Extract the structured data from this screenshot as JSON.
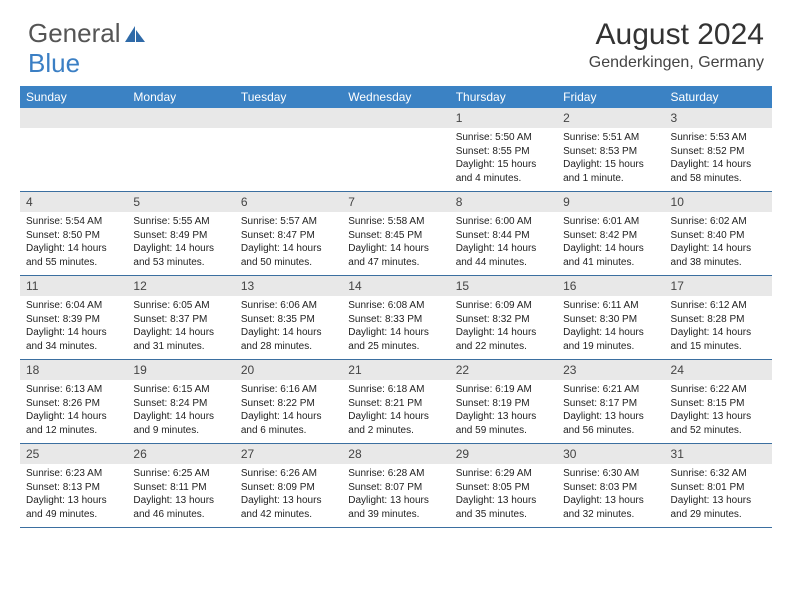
{
  "logo": {
    "text1": "General",
    "text2": "Blue"
  },
  "title": "August 2024",
  "location": "Genderkingen, Germany",
  "colors": {
    "header_bg": "#3b82c4",
    "header_text": "#ffffff",
    "daynum_bg": "#e8e8e8",
    "border": "#3b6fa0",
    "logo_gray": "#555555",
    "logo_blue": "#3b7fc4"
  },
  "day_names": [
    "Sunday",
    "Monday",
    "Tuesday",
    "Wednesday",
    "Thursday",
    "Friday",
    "Saturday"
  ],
  "weeks": [
    [
      {
        "n": "",
        "lines": [
          "",
          "",
          "",
          ""
        ]
      },
      {
        "n": "",
        "lines": [
          "",
          "",
          "",
          ""
        ]
      },
      {
        "n": "",
        "lines": [
          "",
          "",
          "",
          ""
        ]
      },
      {
        "n": "",
        "lines": [
          "",
          "",
          "",
          ""
        ]
      },
      {
        "n": "1",
        "lines": [
          "Sunrise: 5:50 AM",
          "Sunset: 8:55 PM",
          "Daylight: 15 hours",
          "and 4 minutes."
        ]
      },
      {
        "n": "2",
        "lines": [
          "Sunrise: 5:51 AM",
          "Sunset: 8:53 PM",
          "Daylight: 15 hours",
          "and 1 minute."
        ]
      },
      {
        "n": "3",
        "lines": [
          "Sunrise: 5:53 AM",
          "Sunset: 8:52 PM",
          "Daylight: 14 hours",
          "and 58 minutes."
        ]
      }
    ],
    [
      {
        "n": "4",
        "lines": [
          "Sunrise: 5:54 AM",
          "Sunset: 8:50 PM",
          "Daylight: 14 hours",
          "and 55 minutes."
        ]
      },
      {
        "n": "5",
        "lines": [
          "Sunrise: 5:55 AM",
          "Sunset: 8:49 PM",
          "Daylight: 14 hours",
          "and 53 minutes."
        ]
      },
      {
        "n": "6",
        "lines": [
          "Sunrise: 5:57 AM",
          "Sunset: 8:47 PM",
          "Daylight: 14 hours",
          "and 50 minutes."
        ]
      },
      {
        "n": "7",
        "lines": [
          "Sunrise: 5:58 AM",
          "Sunset: 8:45 PM",
          "Daylight: 14 hours",
          "and 47 minutes."
        ]
      },
      {
        "n": "8",
        "lines": [
          "Sunrise: 6:00 AM",
          "Sunset: 8:44 PM",
          "Daylight: 14 hours",
          "and 44 minutes."
        ]
      },
      {
        "n": "9",
        "lines": [
          "Sunrise: 6:01 AM",
          "Sunset: 8:42 PM",
          "Daylight: 14 hours",
          "and 41 minutes."
        ]
      },
      {
        "n": "10",
        "lines": [
          "Sunrise: 6:02 AM",
          "Sunset: 8:40 PM",
          "Daylight: 14 hours",
          "and 38 minutes."
        ]
      }
    ],
    [
      {
        "n": "11",
        "lines": [
          "Sunrise: 6:04 AM",
          "Sunset: 8:39 PM",
          "Daylight: 14 hours",
          "and 34 minutes."
        ]
      },
      {
        "n": "12",
        "lines": [
          "Sunrise: 6:05 AM",
          "Sunset: 8:37 PM",
          "Daylight: 14 hours",
          "and 31 minutes."
        ]
      },
      {
        "n": "13",
        "lines": [
          "Sunrise: 6:06 AM",
          "Sunset: 8:35 PM",
          "Daylight: 14 hours",
          "and 28 minutes."
        ]
      },
      {
        "n": "14",
        "lines": [
          "Sunrise: 6:08 AM",
          "Sunset: 8:33 PM",
          "Daylight: 14 hours",
          "and 25 minutes."
        ]
      },
      {
        "n": "15",
        "lines": [
          "Sunrise: 6:09 AM",
          "Sunset: 8:32 PM",
          "Daylight: 14 hours",
          "and 22 minutes."
        ]
      },
      {
        "n": "16",
        "lines": [
          "Sunrise: 6:11 AM",
          "Sunset: 8:30 PM",
          "Daylight: 14 hours",
          "and 19 minutes."
        ]
      },
      {
        "n": "17",
        "lines": [
          "Sunrise: 6:12 AM",
          "Sunset: 8:28 PM",
          "Daylight: 14 hours",
          "and 15 minutes."
        ]
      }
    ],
    [
      {
        "n": "18",
        "lines": [
          "Sunrise: 6:13 AM",
          "Sunset: 8:26 PM",
          "Daylight: 14 hours",
          "and 12 minutes."
        ]
      },
      {
        "n": "19",
        "lines": [
          "Sunrise: 6:15 AM",
          "Sunset: 8:24 PM",
          "Daylight: 14 hours",
          "and 9 minutes."
        ]
      },
      {
        "n": "20",
        "lines": [
          "Sunrise: 6:16 AM",
          "Sunset: 8:22 PM",
          "Daylight: 14 hours",
          "and 6 minutes."
        ]
      },
      {
        "n": "21",
        "lines": [
          "Sunrise: 6:18 AM",
          "Sunset: 8:21 PM",
          "Daylight: 14 hours",
          "and 2 minutes."
        ]
      },
      {
        "n": "22",
        "lines": [
          "Sunrise: 6:19 AM",
          "Sunset: 8:19 PM",
          "Daylight: 13 hours",
          "and 59 minutes."
        ]
      },
      {
        "n": "23",
        "lines": [
          "Sunrise: 6:21 AM",
          "Sunset: 8:17 PM",
          "Daylight: 13 hours",
          "and 56 minutes."
        ]
      },
      {
        "n": "24",
        "lines": [
          "Sunrise: 6:22 AM",
          "Sunset: 8:15 PM",
          "Daylight: 13 hours",
          "and 52 minutes."
        ]
      }
    ],
    [
      {
        "n": "25",
        "lines": [
          "Sunrise: 6:23 AM",
          "Sunset: 8:13 PM",
          "Daylight: 13 hours",
          "and 49 minutes."
        ]
      },
      {
        "n": "26",
        "lines": [
          "Sunrise: 6:25 AM",
          "Sunset: 8:11 PM",
          "Daylight: 13 hours",
          "and 46 minutes."
        ]
      },
      {
        "n": "27",
        "lines": [
          "Sunrise: 6:26 AM",
          "Sunset: 8:09 PM",
          "Daylight: 13 hours",
          "and 42 minutes."
        ]
      },
      {
        "n": "28",
        "lines": [
          "Sunrise: 6:28 AM",
          "Sunset: 8:07 PM",
          "Daylight: 13 hours",
          "and 39 minutes."
        ]
      },
      {
        "n": "29",
        "lines": [
          "Sunrise: 6:29 AM",
          "Sunset: 8:05 PM",
          "Daylight: 13 hours",
          "and 35 minutes."
        ]
      },
      {
        "n": "30",
        "lines": [
          "Sunrise: 6:30 AM",
          "Sunset: 8:03 PM",
          "Daylight: 13 hours",
          "and 32 minutes."
        ]
      },
      {
        "n": "31",
        "lines": [
          "Sunrise: 6:32 AM",
          "Sunset: 8:01 PM",
          "Daylight: 13 hours",
          "and 29 minutes."
        ]
      }
    ]
  ]
}
